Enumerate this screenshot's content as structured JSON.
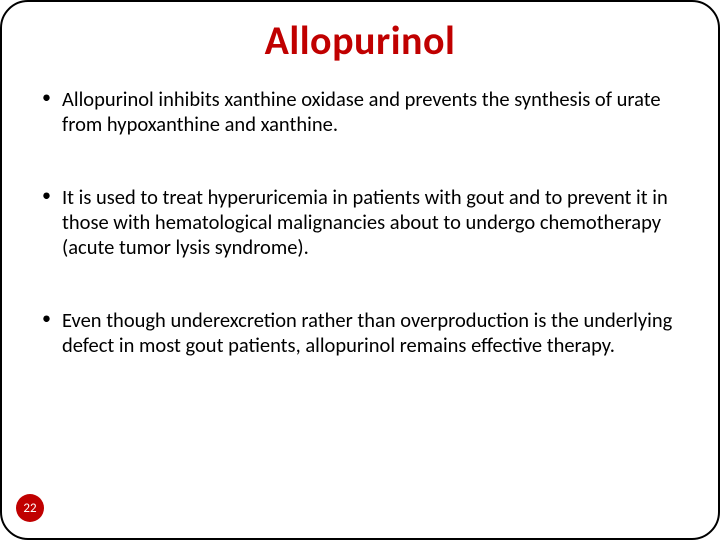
{
  "title": "Allopurinol",
  "title_color": "#c00000",
  "title_fontsize": 40,
  "body_fontsize": 20.5,
  "body_color": "#000000",
  "background_color": "#ffffff",
  "border_color": "#000000",
  "border_radius": 28,
  "bullets": [
    "Allopurinol inhibits xanthine oxidase and prevents the synthesis of urate from hypoxanthine and xanthine.",
    "It is used to treat hyperuricemia in patients with gout and to prevent it in those with hematological malignancies about to undergo chemotherapy (acute tumor lysis syndrome).",
    "Even though underexcretion rather than overproduction is the underlying defect in most gout patients, allopurinol remains effective therapy."
  ],
  "page_number": "22",
  "page_badge_color": "#c00000",
  "page_badge_text_color": "#ffffff"
}
